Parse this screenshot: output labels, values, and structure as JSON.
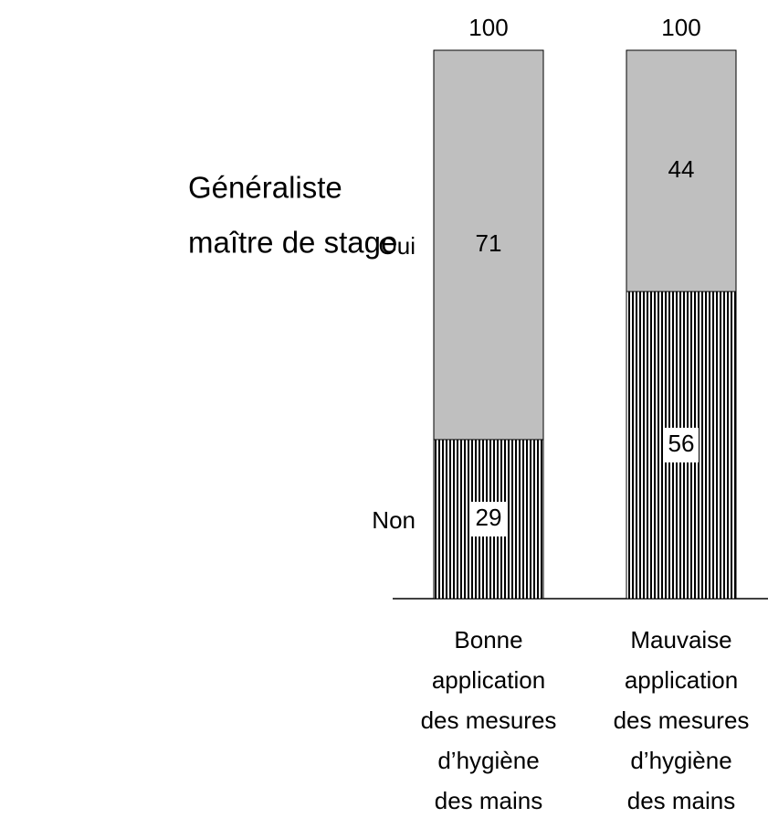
{
  "chart_data": {
    "type": "stacked-bar",
    "legend_title": [
      "Généraliste",
      "maître de stage"
    ],
    "categories": [
      [
        "Bonne",
        "application",
        "des mesures",
        "d’hygiène",
        "des mains"
      ],
      [
        "Mauvaise",
        "application",
        "des mesures",
        "d’hygiène",
        "des mains"
      ]
    ],
    "series": [
      {
        "name": "Non",
        "color": "#000000",
        "hatch": "vertical",
        "values": [
          29,
          56
        ]
      },
      {
        "name": "Oui",
        "color": "#bfbfbf",
        "values": [
          71,
          44
        ]
      }
    ],
    "totals": [
      100,
      100
    ]
  }
}
